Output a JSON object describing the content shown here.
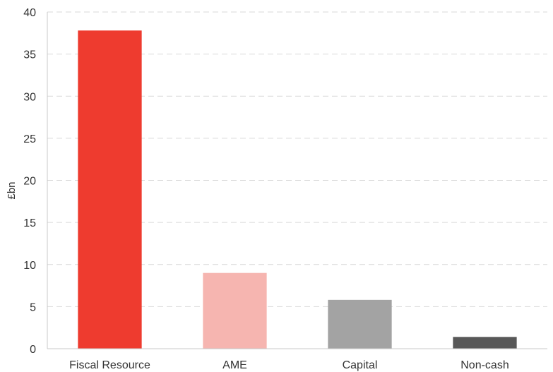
{
  "chart_data": {
    "type": "bar",
    "title": "",
    "xlabel": "",
    "ylabel": "£bn",
    "categories": [
      "Fiscal Resource",
      "AME",
      "Capital",
      "Non-cash"
    ],
    "values": [
      37.8,
      9.0,
      5.8,
      1.4
    ],
    "colors": [
      "#ee3b2f",
      "#f6b5b0",
      "#a3a3a3",
      "#585858"
    ],
    "ylim": [
      0,
      40
    ],
    "yticks": [
      "0",
      "5",
      "10",
      "15",
      "20",
      "25",
      "30",
      "35",
      "40"
    ],
    "grid": "horizontal dashed",
    "legend": "none"
  }
}
